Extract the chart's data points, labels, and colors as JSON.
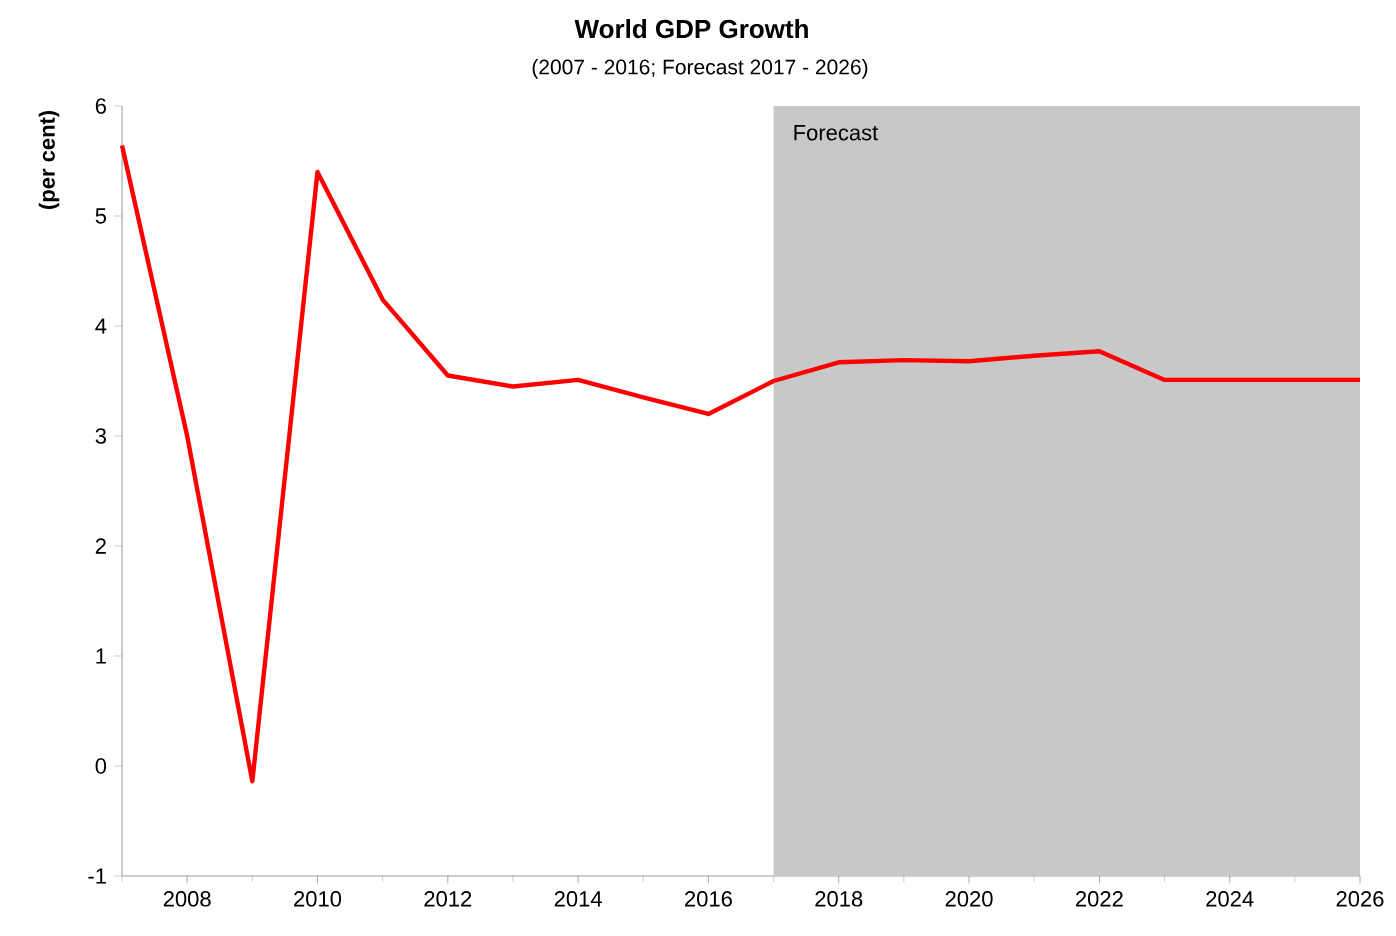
{
  "chart_data": {
    "type": "line",
    "title": "World GDP Growth",
    "subtitle": "(2007 - 2016; Forecast 2017 - 2026)",
    "ylabel": "(per cent)",
    "x": [
      2007,
      2008,
      2009,
      2010,
      2011,
      2012,
      2013,
      2014,
      2015,
      2016,
      2017,
      2018,
      2019,
      2020,
      2021,
      2022,
      2023,
      2024,
      2025,
      2026
    ],
    "series": [
      {
        "color": "#ff0000",
        "values": [
          5.64,
          3.0,
          -0.14,
          5.4,
          4.24,
          3.55,
          3.45,
          3.51,
          3.35,
          3.2,
          3.5,
          3.67,
          3.69,
          3.68,
          3.73,
          3.77,
          3.51,
          3.51,
          3.51,
          3.51
        ]
      }
    ],
    "xlim": [
      2007,
      2026
    ],
    "ylim": [
      -1,
      6
    ],
    "xticks": [
      2008,
      2010,
      2012,
      2014,
      2016,
      2018,
      2020,
      2022,
      2024,
      2026
    ],
    "yticks": [
      -1,
      0,
      1,
      2,
      3,
      4,
      5,
      6
    ],
    "bands": [
      {
        "axis": "x",
        "from": 2017,
        "to": 2026,
        "label": "Forecast",
        "color": "#c8c8c8"
      }
    ],
    "grid": false,
    "marker": "none",
    "line_style": "solid"
  }
}
